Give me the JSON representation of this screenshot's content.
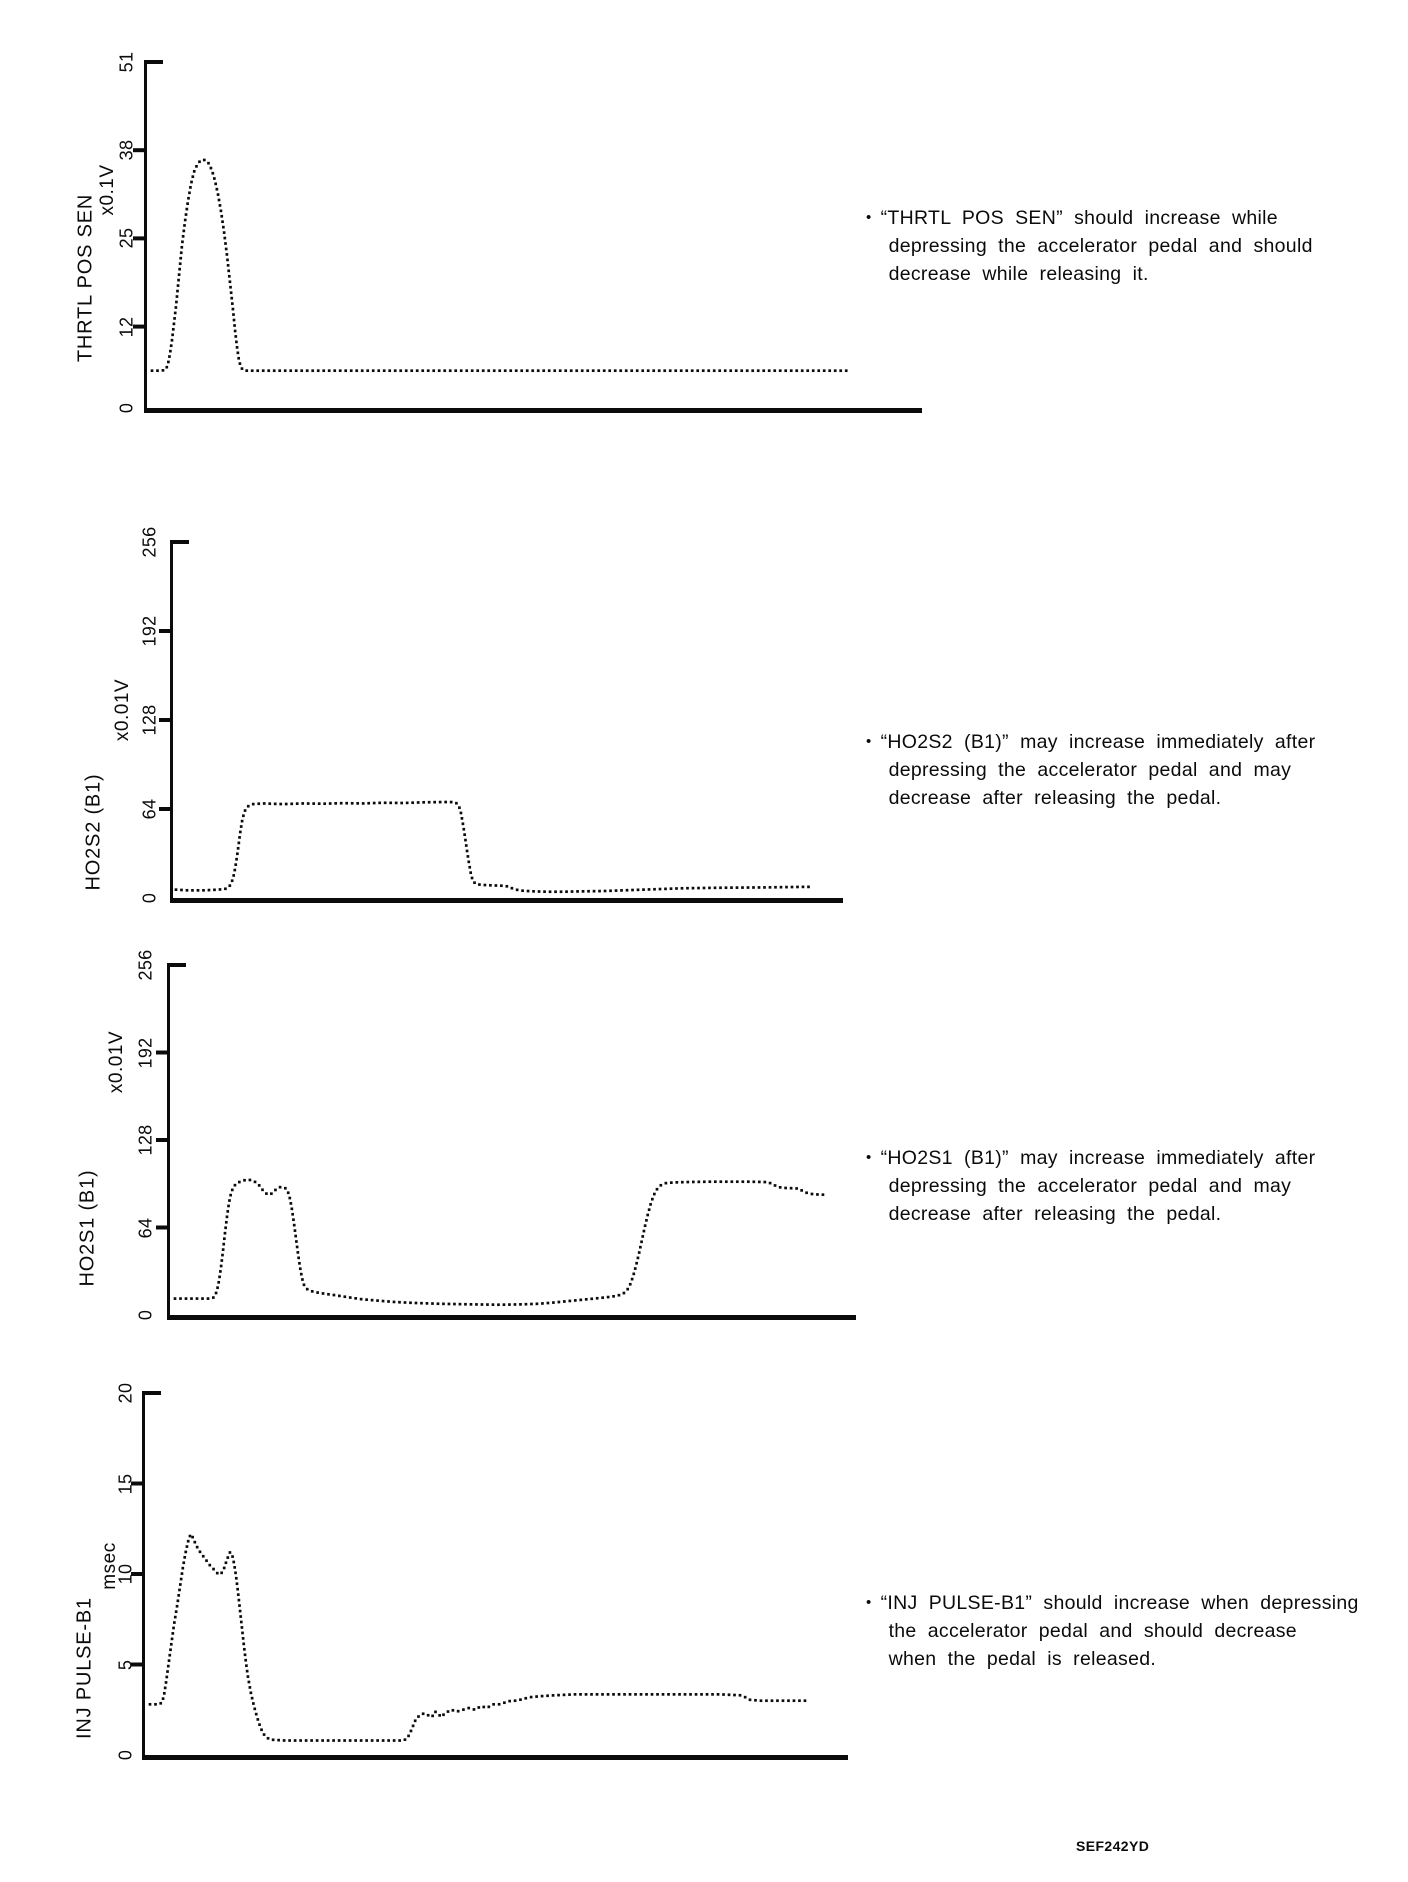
{
  "page": {
    "background": "#ffffff",
    "ref_code": "SEF242YD"
  },
  "ui": {
    "bullet": "•"
  },
  "chart_data": [
    {
      "type": "line",
      "style": "dotted-trace",
      "title": "THRTL POS SEN",
      "ylabel": "THRTL POS SEN",
      "unit": "x0.1V",
      "xlabel": "",
      "y_ticks": [
        0,
        12,
        25,
        38,
        51
      ],
      "ylim": [
        0,
        51
      ],
      "grid": false,
      "note_lines": [
        "“THRTL POS SEN” should increase while",
        "depressing the accelerator pedal and should",
        "decrease while releasing it."
      ],
      "points": [
        [
          5,
          5.5
        ],
        [
          10,
          5.5
        ],
        [
          15,
          5.5
        ],
        [
          19,
          5.7
        ],
        [
          21,
          6.5
        ],
        [
          23,
          8
        ],
        [
          25,
          10
        ],
        [
          27,
          12.5
        ],
        [
          29,
          15
        ],
        [
          31,
          18
        ],
        [
          33,
          21
        ],
        [
          35,
          24
        ],
        [
          38,
          27.5
        ],
        [
          41,
          30.5
        ],
        [
          44,
          33
        ],
        [
          47,
          34.8
        ],
        [
          50,
          35.8
        ],
        [
          53,
          36.4
        ],
        [
          56,
          36.6
        ],
        [
          59,
          36.5
        ],
        [
          62,
          36
        ],
        [
          65,
          35
        ],
        [
          68,
          33.5
        ],
        [
          71,
          31.5
        ],
        [
          74,
          29
        ],
        [
          77,
          26
        ],
        [
          80,
          22.5
        ],
        [
          83,
          18.5
        ],
        [
          86,
          14.5
        ],
        [
          88,
          11.5
        ],
        [
          90,
          9
        ],
        [
          92,
          7
        ],
        [
          94,
          6
        ],
        [
          96,
          5.6
        ],
        [
          100,
          5.5
        ],
        [
          703,
          5.5
        ]
      ]
    },
    {
      "type": "line",
      "style": "dotted-trace",
      "title": "HO2S2 (B1)",
      "ylabel": "HO2S2 (B1)",
      "unit": "x0.01V",
      "xlabel": "",
      "y_ticks": [
        0,
        64,
        128,
        192,
        256
      ],
      "ylim": [
        0,
        256
      ],
      "grid": false,
      "note_lines": [
        "“HO2S2 (B1)” may increase immediately after",
        "depressing the accelerator pedal and may",
        "decrease after releasing the pedal."
      ],
      "points": [
        [
          3,
          6
        ],
        [
          15,
          5.5
        ],
        [
          30,
          5.5
        ],
        [
          45,
          6
        ],
        [
          52,
          6.5
        ],
        [
          55,
          7.5
        ],
        [
          57,
          9
        ],
        [
          59,
          12
        ],
        [
          61,
          17
        ],
        [
          63,
          25
        ],
        [
          65,
          35
        ],
        [
          67,
          46
        ],
        [
          69,
          55
        ],
        [
          71,
          61
        ],
        [
          73,
          64.5
        ],
        [
          76,
          66.5
        ],
        [
          80,
          67.5
        ],
        [
          90,
          68
        ],
        [
          110,
          67.5
        ],
        [
          130,
          68
        ],
        [
          150,
          67.8
        ],
        [
          170,
          68.2
        ],
        [
          190,
          68
        ],
        [
          210,
          68.5
        ],
        [
          230,
          68.3
        ],
        [
          250,
          68.8
        ],
        [
          270,
          69
        ],
        [
          278,
          69
        ],
        [
          283,
          68.5
        ],
        [
          286,
          66
        ],
        [
          288,
          61
        ],
        [
          290,
          53
        ],
        [
          292,
          44
        ],
        [
          294,
          34
        ],
        [
          296,
          25
        ],
        [
          298,
          17
        ],
        [
          300,
          12
        ],
        [
          303,
          10
        ],
        [
          308,
          9.5
        ],
        [
          315,
          9.2
        ],
        [
          322,
          9
        ],
        [
          330,
          8.8
        ],
        [
          336,
          8.2
        ],
        [
          339,
          7
        ],
        [
          343,
          6
        ],
        [
          350,
          5.2
        ],
        [
          360,
          4.8
        ],
        [
          375,
          4.5
        ],
        [
          390,
          4.5
        ],
        [
          410,
          4.8
        ],
        [
          430,
          5
        ],
        [
          450,
          5.5
        ],
        [
          470,
          6
        ],
        [
          490,
          6.5
        ],
        [
          510,
          7
        ],
        [
          530,
          7.2
        ],
        [
          550,
          7.4
        ],
        [
          570,
          7.5
        ],
        [
          590,
          7.6
        ],
        [
          610,
          7.8
        ],
        [
          630,
          8
        ],
        [
          640,
          8
        ]
      ]
    },
    {
      "type": "line",
      "style": "dotted-trace",
      "title": "HO2S1 (B1)",
      "ylabel": "HO2S1 (B1)",
      "unit": "x0.01V",
      "xlabel": "",
      "y_ticks": [
        0,
        64,
        128,
        192,
        256
      ],
      "ylim": [
        0,
        256
      ],
      "grid": false,
      "note_lines": [
        "“HO2S1 (B1)” may increase immediately after",
        "depressing the accelerator pedal and may",
        "decrease after releasing the pedal."
      ],
      "points": [
        [
          5,
          12
        ],
        [
          15,
          12
        ],
        [
          25,
          12
        ],
        [
          38,
          12
        ],
        [
          43,
          12.5
        ],
        [
          45,
          14
        ],
        [
          47,
          18
        ],
        [
          49,
          25
        ],
        [
          51,
          35
        ],
        [
          53,
          47
        ],
        [
          55,
          60
        ],
        [
          57,
          72
        ],
        [
          59,
          82
        ],
        [
          61,
          89
        ],
        [
          63,
          93
        ],
        [
          66,
          96
        ],
        [
          70,
          97.5
        ],
        [
          74,
          98.5
        ],
        [
          78,
          99
        ],
        [
          82,
          98.5
        ],
        [
          86,
          97
        ],
        [
          89,
          95
        ],
        [
          92,
          92
        ],
        [
          95,
          89.5
        ],
        [
          98,
          88
        ],
        [
          101,
          88.5
        ],
        [
          104,
          90.5
        ],
        [
          107,
          92.5
        ],
        [
          110,
          93.5
        ],
        [
          113,
          93.5
        ],
        [
          116,
          92.5
        ],
        [
          118,
          90
        ],
        [
          120,
          85
        ],
        [
          122,
          77
        ],
        [
          124,
          67
        ],
        [
          126,
          56
        ],
        [
          128,
          45
        ],
        [
          130,
          35
        ],
        [
          132,
          27
        ],
        [
          134,
          22
        ],
        [
          137,
          19
        ],
        [
          141,
          17.5
        ],
        [
          147,
          16.5
        ],
        [
          155,
          15.5
        ],
        [
          165,
          14.5
        ],
        [
          178,
          13
        ],
        [
          192,
          11.5
        ],
        [
          208,
          10.5
        ],
        [
          225,
          9.5
        ],
        [
          245,
          8.8
        ],
        [
          270,
          8.2
        ],
        [
          300,
          7.8
        ],
        [
          330,
          7.5
        ],
        [
          352,
          7.8
        ],
        [
          368,
          8.2
        ],
        [
          382,
          9
        ],
        [
          396,
          10
        ],
        [
          410,
          11
        ],
        [
          424,
          12
        ],
        [
          437,
          13
        ],
        [
          447,
          14
        ],
        [
          453,
          15.5
        ],
        [
          457,
          18
        ],
        [
          460,
          22
        ],
        [
          463,
          28
        ],
        [
          466,
          36
        ],
        [
          469,
          45
        ],
        [
          472,
          55
        ],
        [
          475,
          65
        ],
        [
          478,
          74
        ],
        [
          481,
          82
        ],
        [
          484,
          88
        ],
        [
          487,
          92
        ],
        [
          491,
          95
        ],
        [
          496,
          96.5
        ],
        [
          505,
          97
        ],
        [
          520,
          97.3
        ],
        [
          540,
          97.5
        ],
        [
          560,
          97.5
        ],
        [
          580,
          97.5
        ],
        [
          598,
          97.2
        ],
        [
          603,
          95.5
        ],
        [
          607,
          94
        ],
        [
          612,
          93
        ],
        [
          620,
          92.8
        ],
        [
          628,
          92.5
        ],
        [
          632,
          91
        ],
        [
          636,
          89.5
        ],
        [
          642,
          88.5
        ],
        [
          650,
          88
        ],
        [
          657,
          88
        ]
      ]
    },
    {
      "type": "line",
      "style": "dotted-trace",
      "title": "INJ PULSE-B1",
      "ylabel": "INJ PULSE-B1",
      "unit": "msec",
      "xlabel": "",
      "y_ticks": [
        0,
        5,
        10,
        15,
        20
      ],
      "ylim": [
        0,
        20
      ],
      "grid": false,
      "note_lines": [
        "“INJ PULSE-B1” should increase when depressing",
        "the accelerator pedal and should decrease",
        "when the pedal is released."
      ],
      "points": [
        [
          5,
          2.8
        ],
        [
          10,
          2.8
        ],
        [
          14,
          2.8
        ],
        [
          17,
          2.9
        ],
        [
          19,
          3.3
        ],
        [
          21,
          4
        ],
        [
          23,
          4.8
        ],
        [
          25,
          5.6
        ],
        [
          27,
          6.4
        ],
        [
          29,
          7.2
        ],
        [
          32,
          8.2
        ],
        [
          35,
          9.3
        ],
        [
          38,
          10.4
        ],
        [
          41,
          11.3
        ],
        [
          44,
          12
        ],
        [
          46,
          12.2
        ],
        [
          48,
          12
        ],
        [
          51,
          11.6
        ],
        [
          54,
          11.3
        ],
        [
          58,
          11
        ],
        [
          62,
          10.7
        ],
        [
          66,
          10.4
        ],
        [
          70,
          10.2
        ],
        [
          73,
          10
        ],
        [
          76,
          10
        ],
        [
          79,
          10.3
        ],
        [
          82,
          10.8
        ],
        [
          85,
          11.2
        ],
        [
          87,
          11.1
        ],
        [
          89,
          10.6
        ],
        [
          91,
          9.9
        ],
        [
          93,
          9
        ],
        [
          95,
          8
        ],
        [
          97,
          7
        ],
        [
          99,
          6
        ],
        [
          101,
          5.1
        ],
        [
          103,
          4.3
        ],
        [
          106,
          3.4
        ],
        [
          109,
          2.7
        ],
        [
          112,
          2.1
        ],
        [
          115,
          1.6
        ],
        [
          118,
          1.2
        ],
        [
          121,
          1
        ],
        [
          125,
          0.85
        ],
        [
          140,
          0.8
        ],
        [
          170,
          0.8
        ],
        [
          200,
          0.8
        ],
        [
          230,
          0.8
        ],
        [
          258,
          0.8
        ],
        [
          262,
          0.9
        ],
        [
          265,
          1.2
        ],
        [
          268,
          1.6
        ],
        [
          271,
          2
        ],
        [
          275,
          2.2
        ],
        [
          279,
          2.3
        ],
        [
          283,
          2.2
        ],
        [
          287,
          2.1
        ],
        [
          290,
          2.4
        ],
        [
          293,
          2.3
        ],
        [
          296,
          2.1
        ],
        [
          300,
          2.3
        ],
        [
          306,
          2.5
        ],
        [
          312,
          2.4
        ],
        [
          318,
          2.5
        ],
        [
          324,
          2.6
        ],
        [
          330,
          2.5
        ],
        [
          336,
          2.7
        ],
        [
          342,
          2.6
        ],
        [
          348,
          2.8
        ],
        [
          354,
          2.8
        ],
        [
          360,
          2.9
        ],
        [
          366,
          3
        ],
        [
          372,
          3
        ],
        [
          378,
          3.1
        ],
        [
          386,
          3.2
        ],
        [
          396,
          3.25
        ],
        [
          410,
          3.3
        ],
        [
          430,
          3.35
        ],
        [
          450,
          3.35
        ],
        [
          475,
          3.35
        ],
        [
          500,
          3.35
        ],
        [
          525,
          3.35
        ],
        [
          550,
          3.35
        ],
        [
          575,
          3.35
        ],
        [
          595,
          3.3
        ],
        [
          600,
          3.2
        ],
        [
          605,
          3.05
        ],
        [
          615,
          3
        ],
        [
          630,
          3
        ],
        [
          645,
          3
        ],
        [
          662,
          3
        ]
      ]
    }
  ]
}
